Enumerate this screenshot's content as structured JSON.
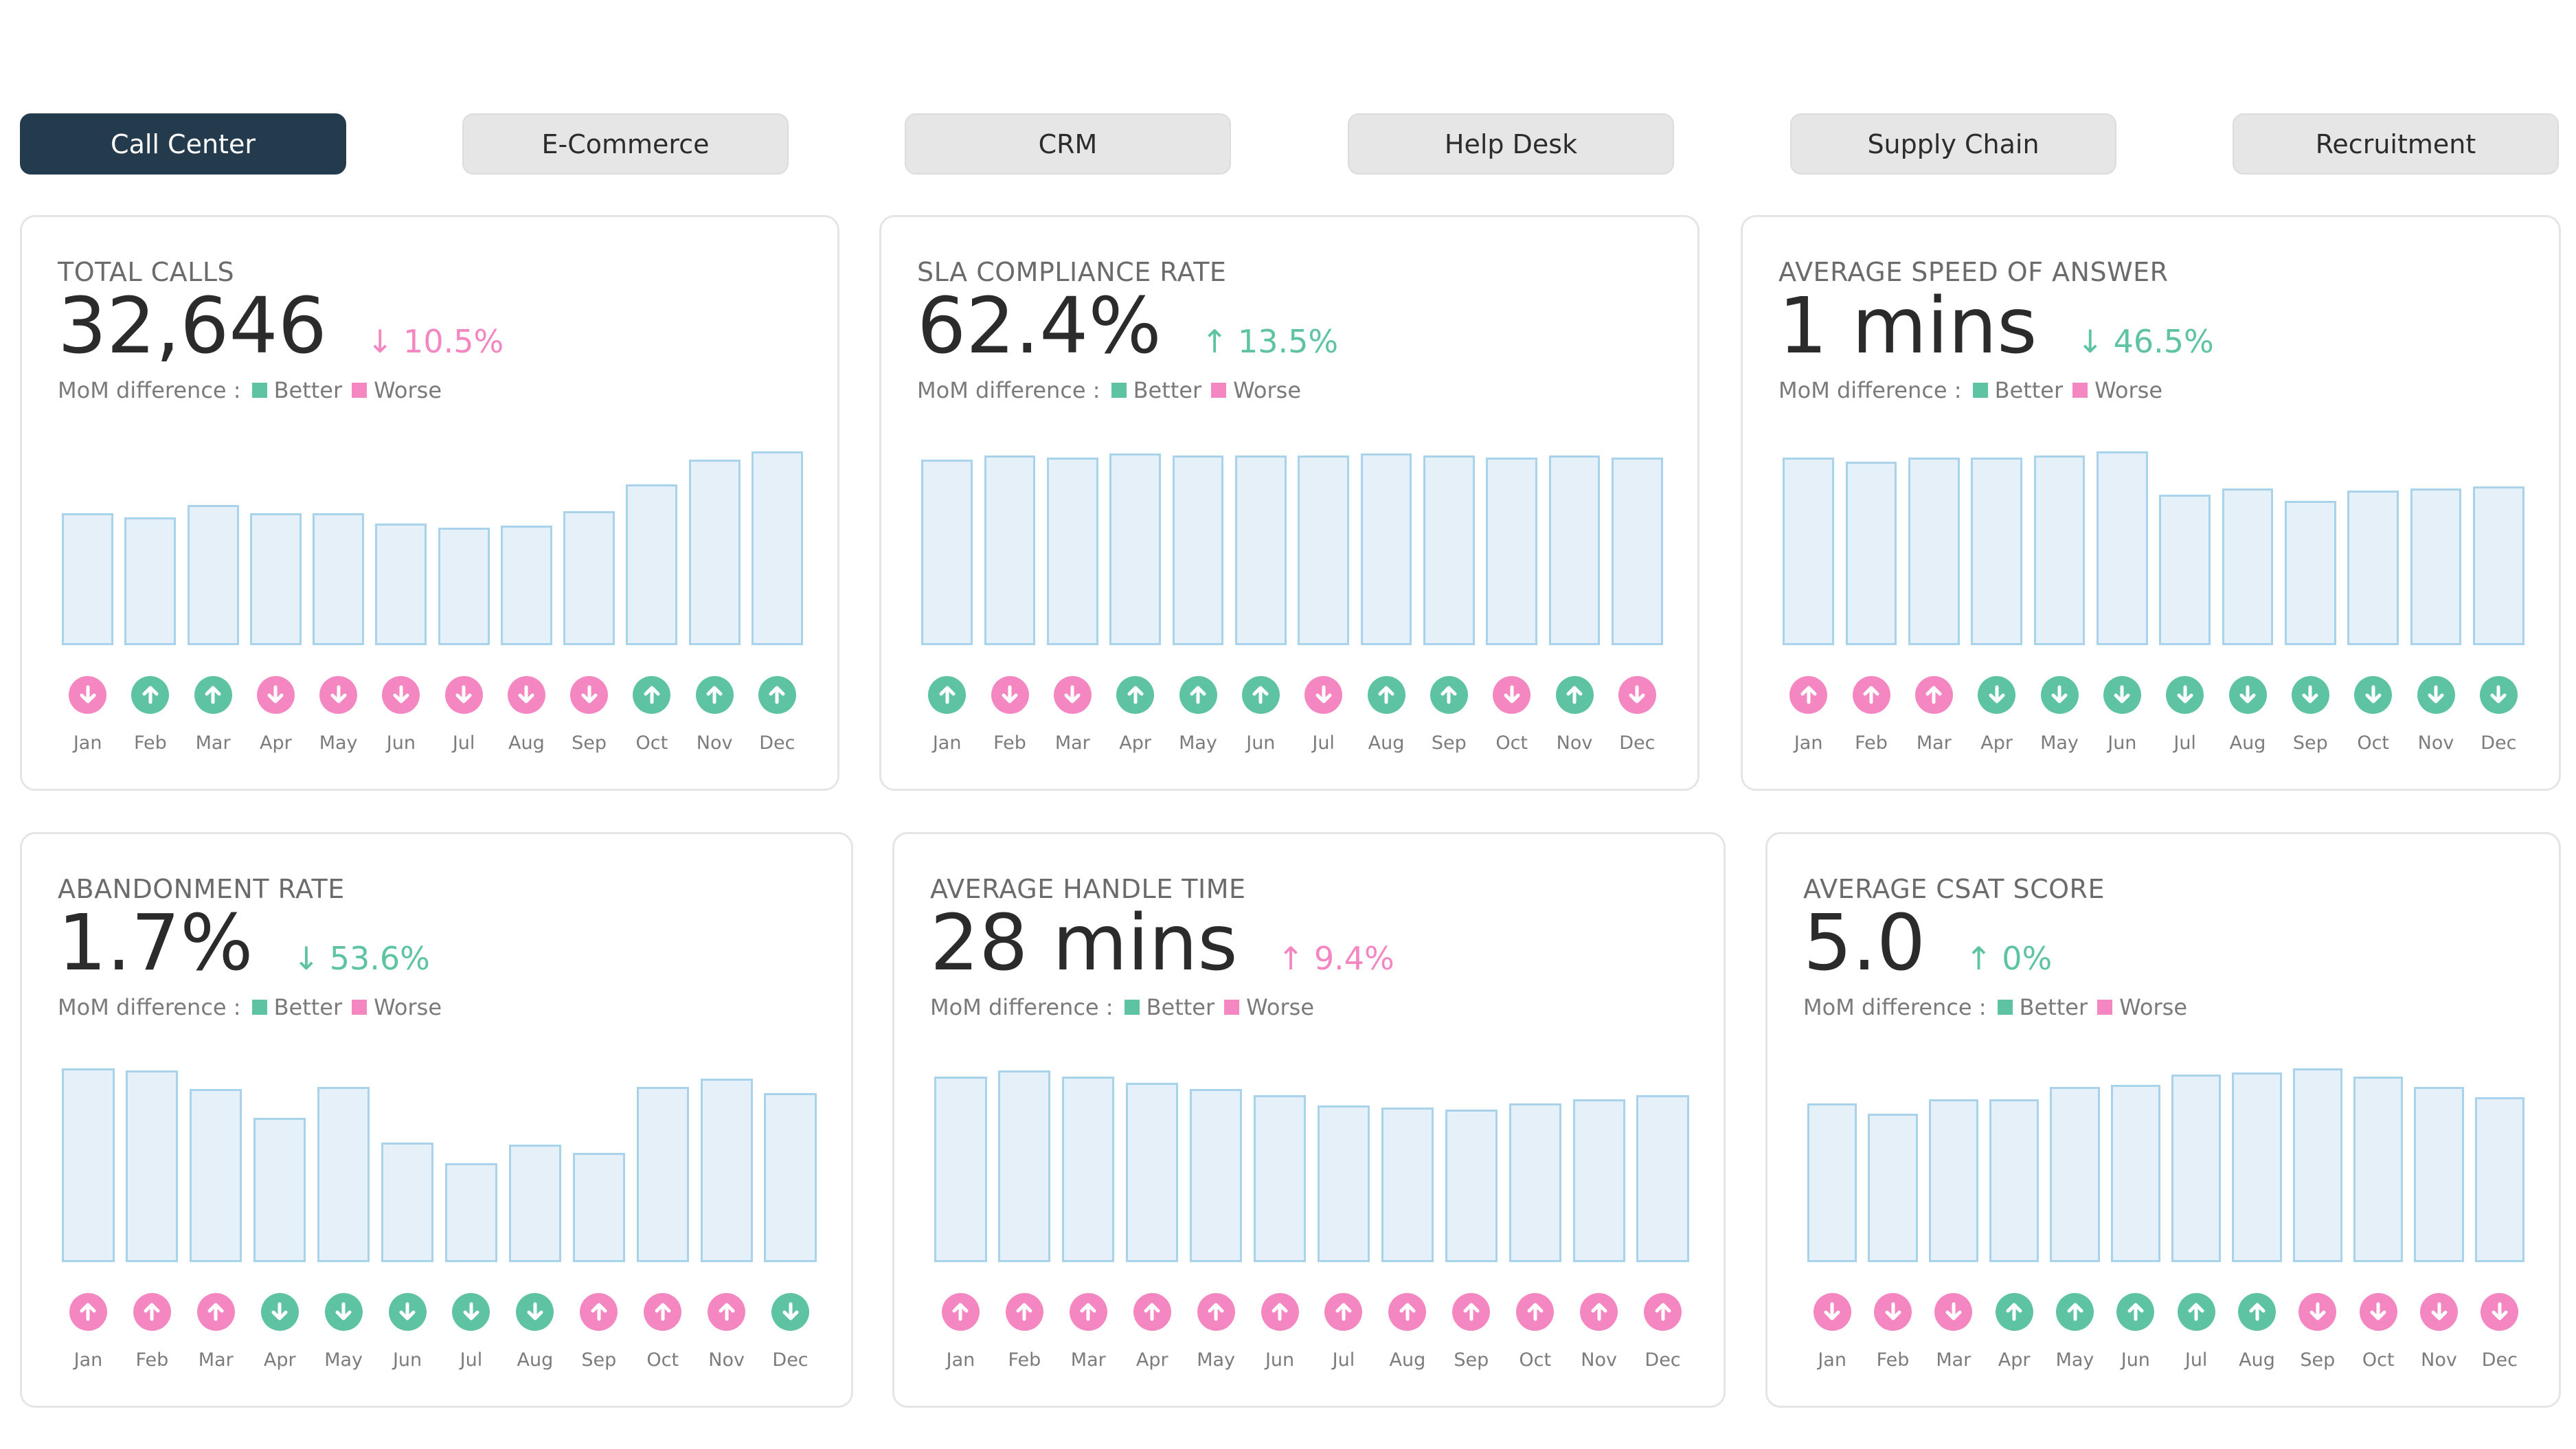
{
  "colors": {
    "better": "#5ec3a3",
    "worse": "#f487c2",
    "active_tab_bg": "#243b4e",
    "bar_fill": "#e6f0f8",
    "bar_stroke": "#a9d3ea"
  },
  "tabs": [
    {
      "label": "Call Center",
      "active": true
    },
    {
      "label": "E-Commerce",
      "active": false
    },
    {
      "label": "CRM",
      "active": false
    },
    {
      "label": "Help Desk",
      "active": false
    },
    {
      "label": "Supply Chain",
      "active": false
    },
    {
      "label": "Recruitment",
      "active": false
    }
  ],
  "legend": {
    "prefix": "MoM difference :",
    "better": "Better",
    "worse": "Worse"
  },
  "months": [
    "Jan",
    "Feb",
    "Mar",
    "Apr",
    "May",
    "Jun",
    "Jul",
    "Aug",
    "Sep",
    "Oct",
    "Nov",
    "Dec"
  ],
  "cards": [
    {
      "title": "TOTAL CALLS",
      "value": "32,646",
      "delta": "↓ 10.5%",
      "delta_status": "worse",
      "chart_data": {
        "type": "bar",
        "values": [
          64,
          62,
          68,
          64,
          64,
          59,
          57,
          58,
          65,
          78,
          90,
          94
        ],
        "directions": [
          "down",
          "up",
          "up",
          "down",
          "down",
          "down",
          "down",
          "down",
          "down",
          "up",
          "up",
          "up"
        ],
        "statuses": [
          "worse",
          "better",
          "better",
          "worse",
          "worse",
          "worse",
          "worse",
          "worse",
          "worse",
          "better",
          "better",
          "better"
        ]
      }
    },
    {
      "title": "SLA COMPLIANCE RATE",
      "value": "62.4%",
      "delta": "↑ 13.5%",
      "delta_status": "better",
      "chart_data": {
        "type": "bar",
        "values": [
          90,
          92,
          91,
          93,
          92,
          92,
          92,
          93,
          92,
          91,
          92,
          91
        ],
        "directions": [
          "up",
          "down",
          "down",
          "up",
          "up",
          "up",
          "down",
          "up",
          "up",
          "down",
          "up",
          "down"
        ],
        "statuses": [
          "better",
          "worse",
          "worse",
          "better",
          "better",
          "better",
          "worse",
          "better",
          "better",
          "worse",
          "better",
          "worse"
        ]
      }
    },
    {
      "title": "AVERAGE SPEED OF ANSWER",
      "value": "1 mins",
      "delta": "↓ 46.5%",
      "delta_status": "better",
      "chart_data": {
        "type": "bar",
        "values": [
          91,
          89,
          91,
          91,
          92,
          94,
          73,
          76,
          70,
          75,
          76,
          77
        ],
        "directions": [
          "up",
          "up",
          "up",
          "down",
          "down",
          "down",
          "down",
          "down",
          "down",
          "down",
          "down",
          "down"
        ],
        "statuses": [
          "worse",
          "worse",
          "worse",
          "better",
          "better",
          "better",
          "better",
          "better",
          "better",
          "better",
          "better",
          "better"
        ]
      }
    },
    {
      "title": "ABANDONMENT RATE",
      "value": "1.7%",
      "delta": "↓ 53.6%",
      "delta_status": "better",
      "chart_data": {
        "type": "bar",
        "values": [
          94,
          93,
          84,
          70,
          85,
          58,
          48,
          57,
          53,
          85,
          89,
          82
        ],
        "directions": [
          "up",
          "up",
          "up",
          "down",
          "down",
          "down",
          "down",
          "down",
          "up",
          "up",
          "up",
          "down"
        ],
        "statuses": [
          "worse",
          "worse",
          "worse",
          "better",
          "better",
          "better",
          "better",
          "better",
          "worse",
          "worse",
          "worse",
          "better"
        ]
      }
    },
    {
      "title": "AVERAGE HANDLE TIME",
      "value": "28 mins",
      "delta": "↑ 9.4%",
      "delta_status": "worse",
      "chart_data": {
        "type": "bar",
        "values": [
          90,
          93,
          90,
          87,
          84,
          81,
          76,
          75,
          74,
          77,
          79,
          81
        ],
        "directions": [
          "up",
          "up",
          "up",
          "up",
          "up",
          "up",
          "up",
          "up",
          "up",
          "up",
          "up",
          "up"
        ],
        "statuses": [
          "worse",
          "worse",
          "worse",
          "worse",
          "worse",
          "worse",
          "worse",
          "worse",
          "worse",
          "worse",
          "worse",
          "worse"
        ]
      }
    },
    {
      "title": "AVERAGE CSAT SCORE",
      "value": "5.0",
      "delta": "↑ 0%",
      "delta_status": "better",
      "chart_data": {
        "type": "bar",
        "values": [
          77,
          72,
          79,
          79,
          85,
          86,
          91,
          92,
          94,
          90,
          85,
          80
        ],
        "directions": [
          "down",
          "down",
          "down",
          "up",
          "up",
          "up",
          "up",
          "up",
          "down",
          "down",
          "down",
          "down"
        ],
        "statuses": [
          "worse",
          "worse",
          "worse",
          "better",
          "better",
          "better",
          "better",
          "better",
          "worse",
          "worse",
          "worse",
          "worse"
        ]
      }
    }
  ]
}
